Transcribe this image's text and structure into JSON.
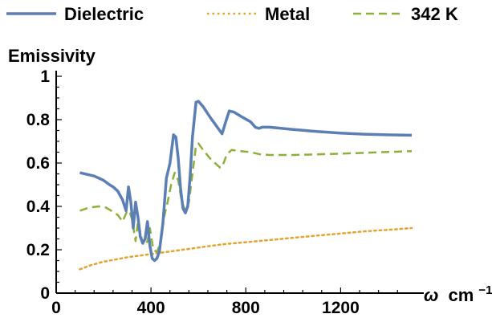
{
  "chart_data": {
    "type": "line",
    "title": "",
    "xlabel_symbol": "ω",
    "xlabel_unit": "cm",
    "xlabel_exponent": "−1",
    "ylabel": "Emissivity",
    "xlim": [
      0,
      1500
    ],
    "ylim": [
      0,
      1
    ],
    "xticks": [
      0,
      400,
      800,
      1200
    ],
    "yticks": [
      0,
      0.2,
      0.4,
      0.6,
      0.8,
      1
    ],
    "ytick_labels": [
      "0",
      "0.2",
      "0.4",
      "0.6",
      "0.8",
      "1"
    ],
    "grid": false,
    "legend_position": "top",
    "series": [
      {
        "name": "Dielectric",
        "color": "#5b7fb5",
        "style": "solid",
        "x": [
          100,
          160,
          200,
          225,
          240,
          260,
          280,
          295,
          305,
          315,
          325,
          335,
          345,
          355,
          365,
          375,
          385,
          395,
          405,
          415,
          425,
          435,
          450,
          465,
          480,
          495,
          505,
          515,
          525,
          535,
          545,
          555,
          565,
          575,
          590,
          600,
          620,
          650,
          700,
          715,
          730,
          750,
          780,
          820,
          840,
          855,
          870,
          900,
          1000,
          1100,
          1200,
          1300,
          1400,
          1500
        ],
        "y": [
          0.555,
          0.54,
          0.52,
          0.5,
          0.49,
          0.47,
          0.43,
          0.38,
          0.49,
          0.42,
          0.3,
          0.42,
          0.35,
          0.26,
          0.23,
          0.25,
          0.33,
          0.22,
          0.16,
          0.15,
          0.16,
          0.19,
          0.32,
          0.53,
          0.6,
          0.73,
          0.72,
          0.62,
          0.48,
          0.39,
          0.37,
          0.4,
          0.54,
          0.72,
          0.88,
          0.885,
          0.86,
          0.81,
          0.735,
          0.79,
          0.84,
          0.835,
          0.815,
          0.79,
          0.765,
          0.76,
          0.765,
          0.765,
          0.755,
          0.745,
          0.738,
          0.733,
          0.73,
          0.728
        ]
      },
      {
        "name": "Metal",
        "color": "#e3a32c",
        "style": "dotted",
        "x": [
          100,
          150,
          200,
          300,
          400,
          500,
          600,
          700,
          800,
          900,
          1000,
          1100,
          1200,
          1300,
          1400,
          1500
        ],
        "y": [
          0.11,
          0.13,
          0.145,
          0.165,
          0.18,
          0.195,
          0.21,
          0.225,
          0.235,
          0.245,
          0.255,
          0.265,
          0.275,
          0.285,
          0.292,
          0.3
        ]
      },
      {
        "name": "342 K",
        "color": "#8cb03a",
        "style": "dashed",
        "x": [
          100,
          140,
          180,
          210,
          240,
          260,
          280,
          300,
          310,
          320,
          335,
          345,
          355,
          365,
          375,
          385,
          395,
          410,
          425,
          440,
          455,
          470,
          485,
          500,
          515,
          530,
          545,
          560,
          575,
          590,
          600,
          620,
          650,
          690,
          700,
          720,
          740,
          780,
          820,
          860,
          900,
          1000,
          1100,
          1200,
          1300,
          1400,
          1500
        ],
        "y": [
          0.38,
          0.395,
          0.4,
          0.395,
          0.375,
          0.36,
          0.33,
          0.38,
          0.375,
          0.34,
          0.24,
          0.33,
          0.28,
          0.23,
          0.22,
          0.24,
          0.3,
          0.2,
          0.19,
          0.23,
          0.35,
          0.42,
          0.5,
          0.555,
          0.52,
          0.42,
          0.38,
          0.42,
          0.55,
          0.68,
          0.69,
          0.66,
          0.62,
          0.58,
          0.58,
          0.64,
          0.66,
          0.655,
          0.65,
          0.64,
          0.637,
          0.637,
          0.64,
          0.643,
          0.647,
          0.651,
          0.655
        ]
      }
    ]
  }
}
